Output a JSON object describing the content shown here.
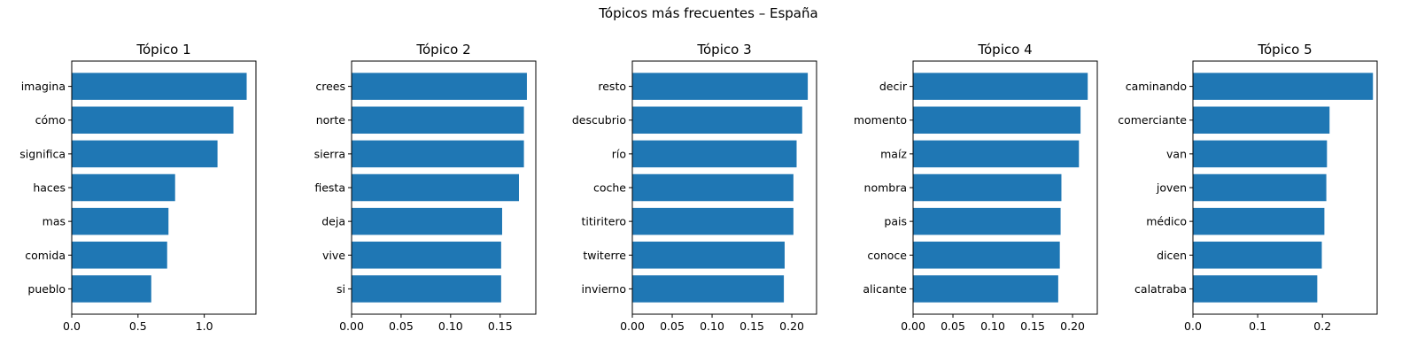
{
  "figure": {
    "title": "Tópicos más frecuentes – España"
  },
  "colors": {
    "bar": "#1f77b4",
    "axis": "#000000",
    "background": "#ffffff"
  },
  "chart_data": [
    {
      "type": "bar",
      "orientation": "horizontal",
      "title": "Tópico 1",
      "xlabel": "",
      "ylabel": "",
      "categories": [
        "imagina",
        "cómo",
        "significa",
        "haces",
        "mas",
        "comida",
        "pueblo"
      ],
      "values": [
        1.32,
        1.22,
        1.1,
        0.78,
        0.73,
        0.72,
        0.6
      ],
      "xlim": [
        0,
        1.39
      ],
      "xticks": [
        0.0,
        0.5,
        1.0
      ],
      "xtick_labels": [
        "0.0",
        "0.5",
        "1.0"
      ],
      "grid": false
    },
    {
      "type": "bar",
      "orientation": "horizontal",
      "title": "Tópico 2",
      "xlabel": "",
      "ylabel": "",
      "categories": [
        "crees",
        "norte",
        "sierra",
        "fiesta",
        "deja",
        "vive",
        "si"
      ],
      "values": [
        0.177,
        0.174,
        0.174,
        0.169,
        0.152,
        0.151,
        0.151
      ],
      "xlim": [
        0,
        0.186
      ],
      "xticks": [
        0.0,
        0.05,
        0.1,
        0.15
      ],
      "xtick_labels": [
        "0.00",
        "0.05",
        "0.10",
        "0.15"
      ],
      "grid": false
    },
    {
      "type": "bar",
      "orientation": "horizontal",
      "title": "Tópico 3",
      "xlabel": "",
      "ylabel": "",
      "categories": [
        "resto",
        "descubrio",
        "río",
        "coche",
        "titiritero",
        "twiterre",
        "invierno"
      ],
      "values": [
        0.22,
        0.213,
        0.206,
        0.202,
        0.202,
        0.191,
        0.19
      ],
      "xlim": [
        0,
        0.231
      ],
      "xticks": [
        0.0,
        0.05,
        0.1,
        0.15,
        0.2
      ],
      "xtick_labels": [
        "0.00",
        "0.05",
        "0.10",
        "0.15",
        "0.20"
      ],
      "grid": false
    },
    {
      "type": "bar",
      "orientation": "horizontal",
      "title": "Tópico 4",
      "xlabel": "",
      "ylabel": "",
      "categories": [
        "decir",
        "momento",
        "maíz",
        "nombra",
        "pais",
        "conoce",
        "alicante"
      ],
      "values": [
        0.219,
        0.21,
        0.208,
        0.186,
        0.185,
        0.184,
        0.182
      ],
      "xlim": [
        0,
        0.231
      ],
      "xticks": [
        0.0,
        0.05,
        0.1,
        0.15,
        0.2
      ],
      "xtick_labels": [
        "0.00",
        "0.05",
        "0.10",
        "0.15",
        "0.20"
      ],
      "grid": false
    },
    {
      "type": "bar",
      "orientation": "horizontal",
      "title": "Tópico 5",
      "xlabel": "",
      "ylabel": "",
      "categories": [
        "caminando",
        "comerciante",
        "van",
        "joven",
        "médico",
        "dicen",
        "calatraba"
      ],
      "values": [
        0.278,
        0.211,
        0.207,
        0.206,
        0.203,
        0.199,
        0.192
      ],
      "xlim": [
        0,
        0.2845
      ],
      "xticks": [
        0.0,
        0.1,
        0.2
      ],
      "xtick_labels": [
        "0.0",
        "0.1",
        "0.2"
      ],
      "grid": false
    }
  ]
}
